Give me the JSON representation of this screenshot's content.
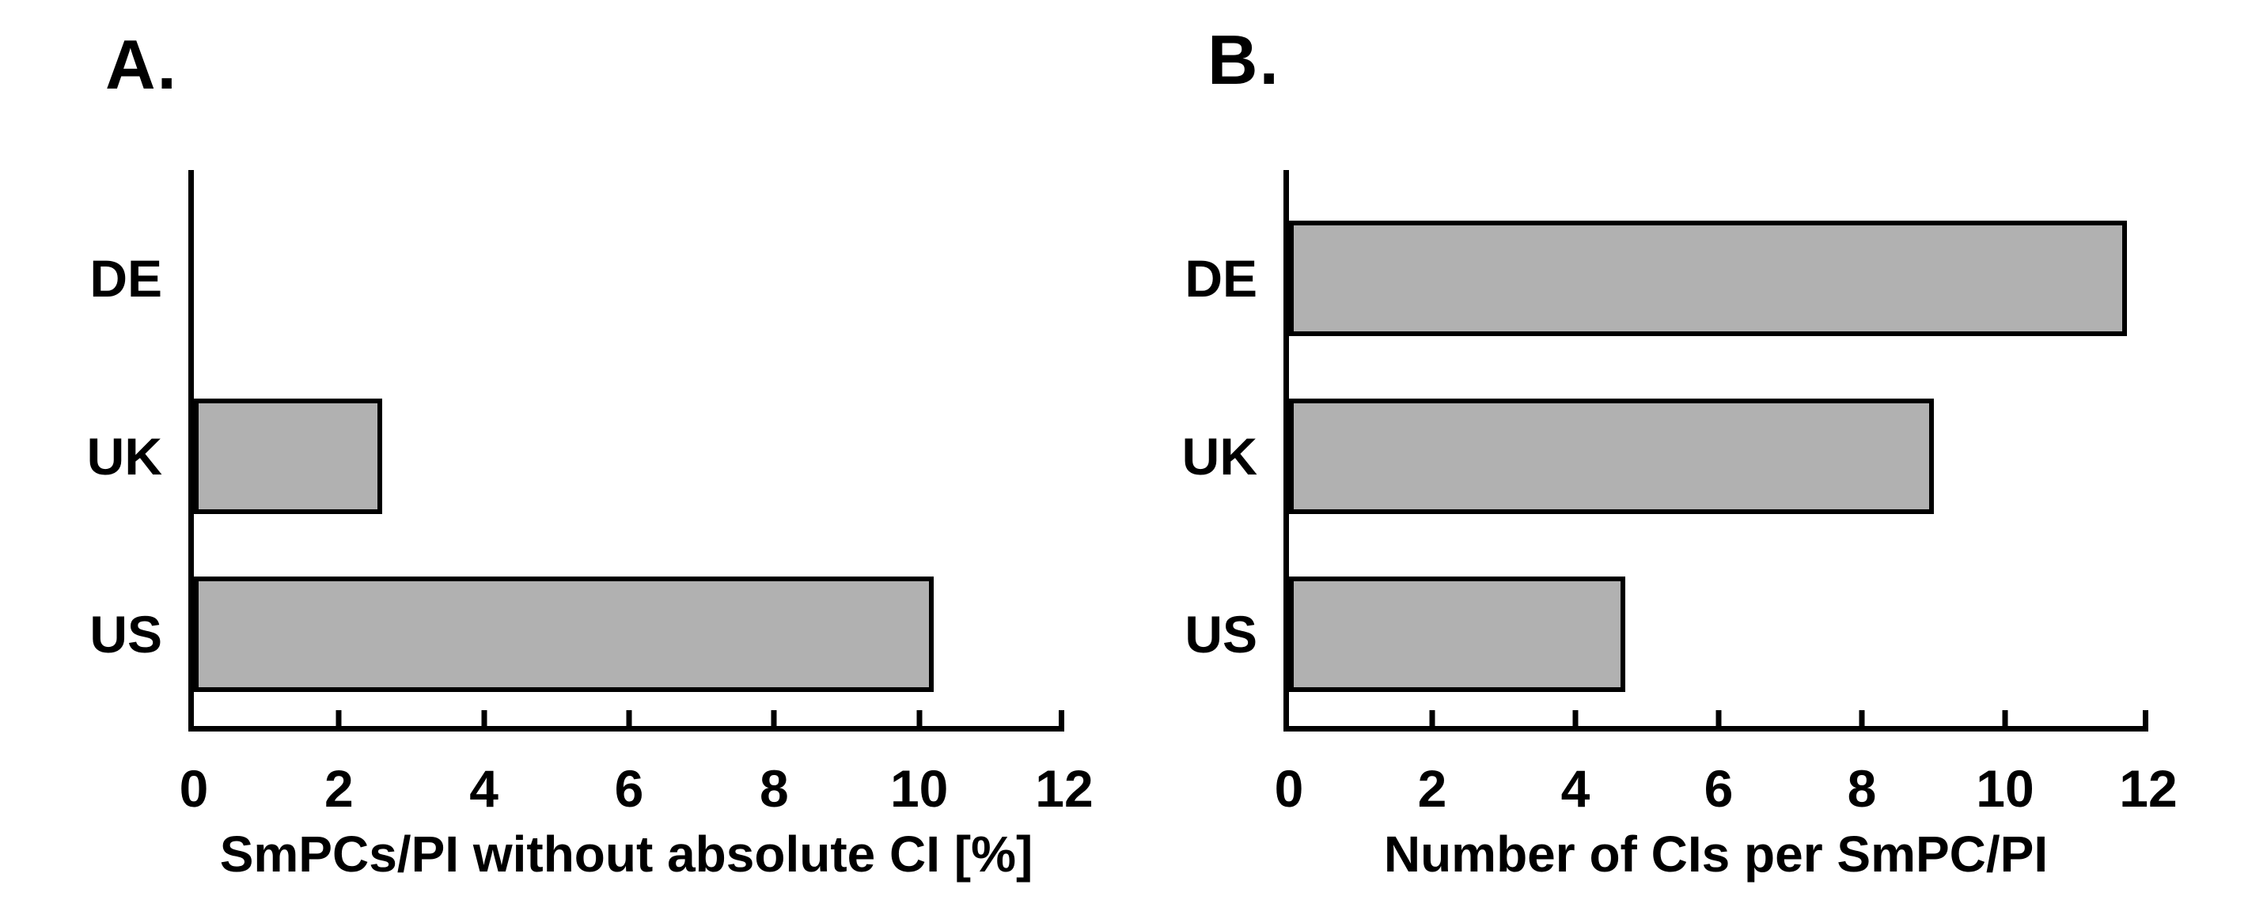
{
  "figure": {
    "background": "#ffffff",
    "text_color": "#000000"
  },
  "chart_data": [
    {
      "type": "bar",
      "orientation": "horizontal",
      "panel_label": "A.",
      "categories": [
        "DE",
        "UK",
        "US"
      ],
      "values": [
        0,
        2.6,
        10.2
      ],
      "xlabel": "SmPCs/PI without absolute CI [%]",
      "xlim": [
        0,
        12
      ],
      "xticks": [
        0,
        2,
        4,
        6,
        8,
        10,
        12
      ],
      "grid": false,
      "legend": false,
      "bar_color": "#b1b1b1",
      "bar_border_color": "#000000"
    },
    {
      "type": "bar",
      "orientation": "horizontal",
      "panel_label": "B.",
      "categories": [
        "DE",
        "UK",
        "US"
      ],
      "values": [
        11.7,
        9.0,
        4.7
      ],
      "xlabel": "Number of CIs per SmPC/PI",
      "xlim": [
        0,
        12
      ],
      "xticks": [
        0,
        2,
        4,
        6,
        8,
        10,
        12
      ],
      "grid": false,
      "legend": false,
      "bar_color": "#b1b1b1",
      "bar_border_color": "#000000"
    }
  ]
}
